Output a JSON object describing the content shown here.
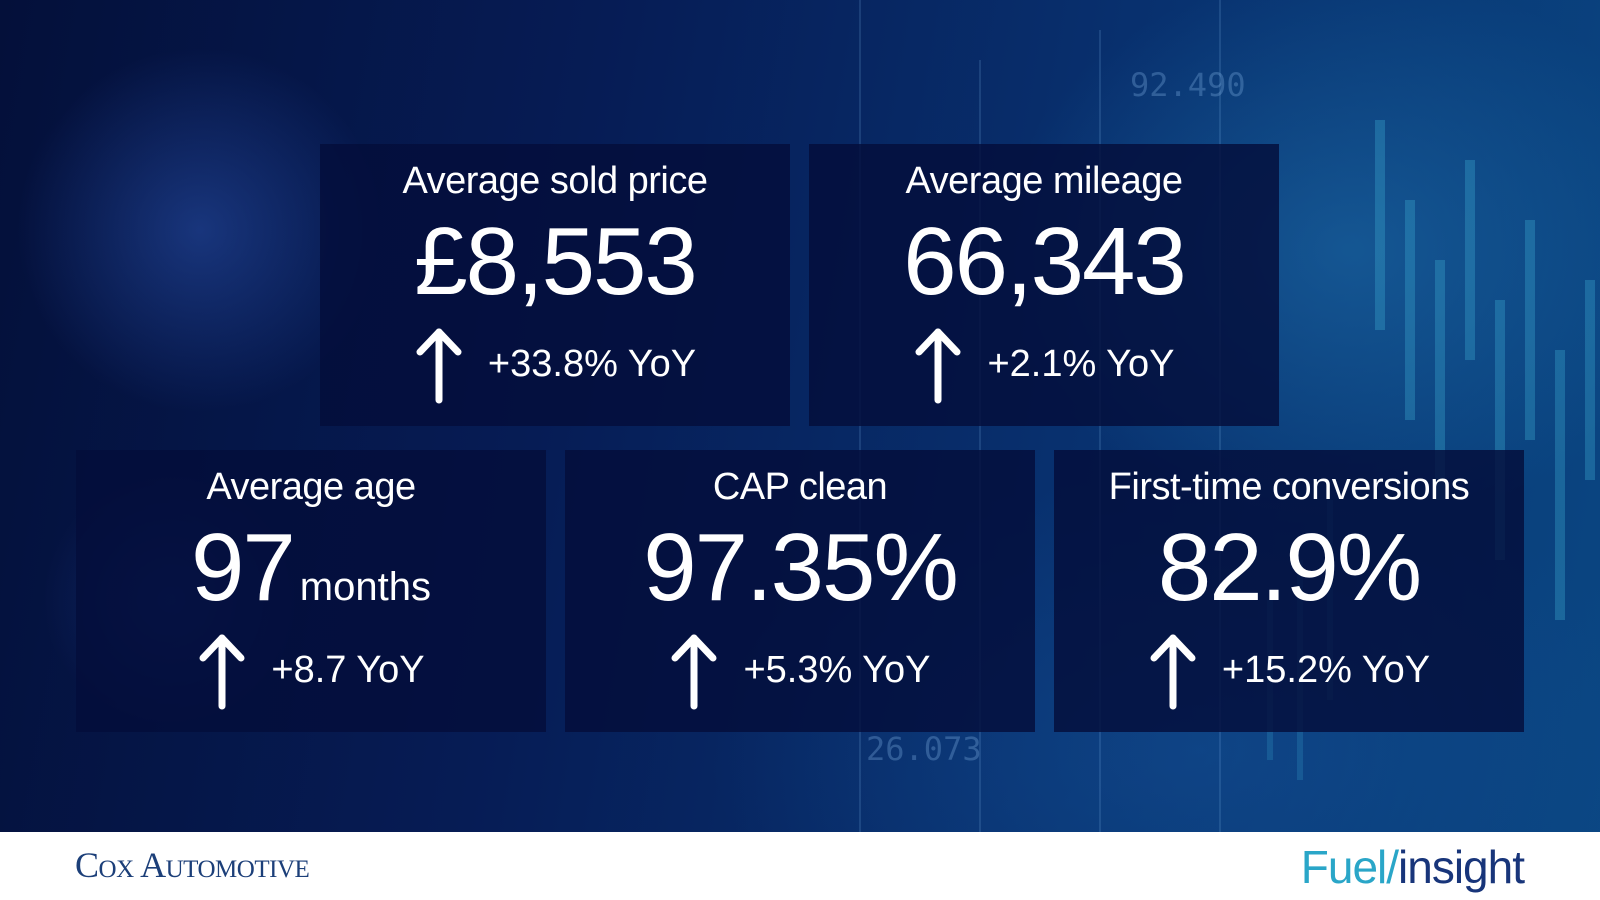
{
  "metrics": [
    {
      "title": "Average sold price",
      "value": "£8,553",
      "unit": "",
      "change": "+33.8% YoY",
      "icon": "arrow-up-icon"
    },
    {
      "title": "Average mileage",
      "value": "66,343",
      "unit": "",
      "change": "+2.1% YoY",
      "icon": "arrow-up-icon"
    },
    {
      "title": "Average age",
      "value": "97",
      "unit": "months",
      "change": "+8.7 YoY",
      "icon": "arrow-up-icon"
    },
    {
      "title": "CAP clean",
      "value": "97.35%",
      "unit": "",
      "change": "+5.3% YoY",
      "icon": "arrow-up-icon"
    },
    {
      "title": "First-time conversions",
      "value": "82.9%",
      "unit": "",
      "change": "+15.2% YoY",
      "icon": "arrow-up-icon"
    }
  ],
  "background_numbers": [
    "92.490",
    "26.073"
  ],
  "footer": {
    "logo_left": "Cox Automotive",
    "logo_right_part1": "Fuel/",
    "logo_right_part2": "insight"
  },
  "colors": {
    "background": "#061c55",
    "card": "#040e3a",
    "text": "#ffffff",
    "footer_blue": "#1c3f79",
    "accent_teal": "#2aa6c8"
  }
}
